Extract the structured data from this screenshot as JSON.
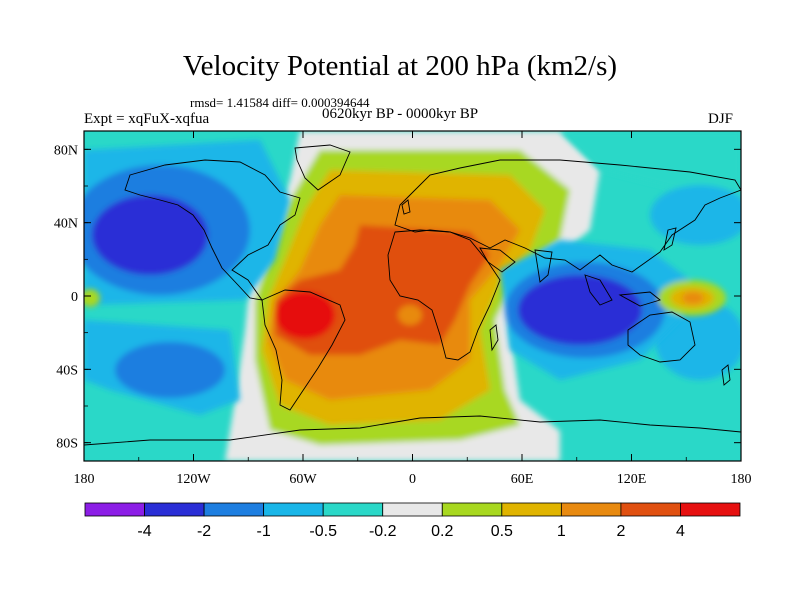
{
  "figure": {
    "title": "Velocity Potential at 200 hPa (km2/s)",
    "stats": "rmsd= 1.41584 diff= 0.000394644",
    "experiment": "Expt = xqFuX-xqfua",
    "period": "0620kyr BP - 0000kyr BP",
    "season": "DJF"
  },
  "map": {
    "y_axis_labels": [
      "80N",
      "40N",
      "0",
      "40S",
      "80S"
    ],
    "y_axis_values": [
      80,
      40,
      0,
      -40,
      -80
    ],
    "x_axis_labels": [
      "180",
      "120W",
      "60W",
      "0",
      "60E",
      "120E",
      "180"
    ],
    "x_axis_values": [
      -180,
      -120,
      -60,
      0,
      60,
      120,
      180
    ],
    "lon_range": [
      -180,
      180
    ],
    "lat_range": [
      -90,
      90
    ],
    "projection": "cylindrical equidistant"
  },
  "colorbar": {
    "colors": [
      "#8c1ee6",
      "#2a2ed6",
      "#1e7ee0",
      "#1ab6e8",
      "#2ad8c8",
      "#e8e8e8",
      "#a8d820",
      "#e0b400",
      "#e88a10",
      "#e05010",
      "#e61010"
    ],
    "labels": [
      "-4",
      "-2",
      "-1",
      "-0.5",
      "-0.2",
      "0.2",
      "0.5",
      "1",
      "2",
      "4"
    ]
  },
  "chart_data": {
    "type": "heatmap",
    "title": "Velocity Potential at 200 hPa (km2/s)",
    "xlabel": "",
    "ylabel": "",
    "xlim": [
      -180,
      180
    ],
    "ylim": [
      -90,
      90
    ],
    "levels": [
      -4,
      -2,
      -1,
      -0.5,
      -0.2,
      0.2,
      0.5,
      1,
      2,
      4
    ],
    "centers": [
      {
        "lon": -140,
        "lat": 30,
        "value": -2.5
      },
      {
        "lon": 95,
        "lat": -5,
        "value": -2.5
      },
      {
        "lon": -55,
        "lat": -10,
        "value": 4.5
      },
      {
        "lon": -20,
        "lat": 15,
        "value": 2.5
      },
      {
        "lon": 155,
        "lat": 0,
        "value": 1.5
      }
    ]
  }
}
